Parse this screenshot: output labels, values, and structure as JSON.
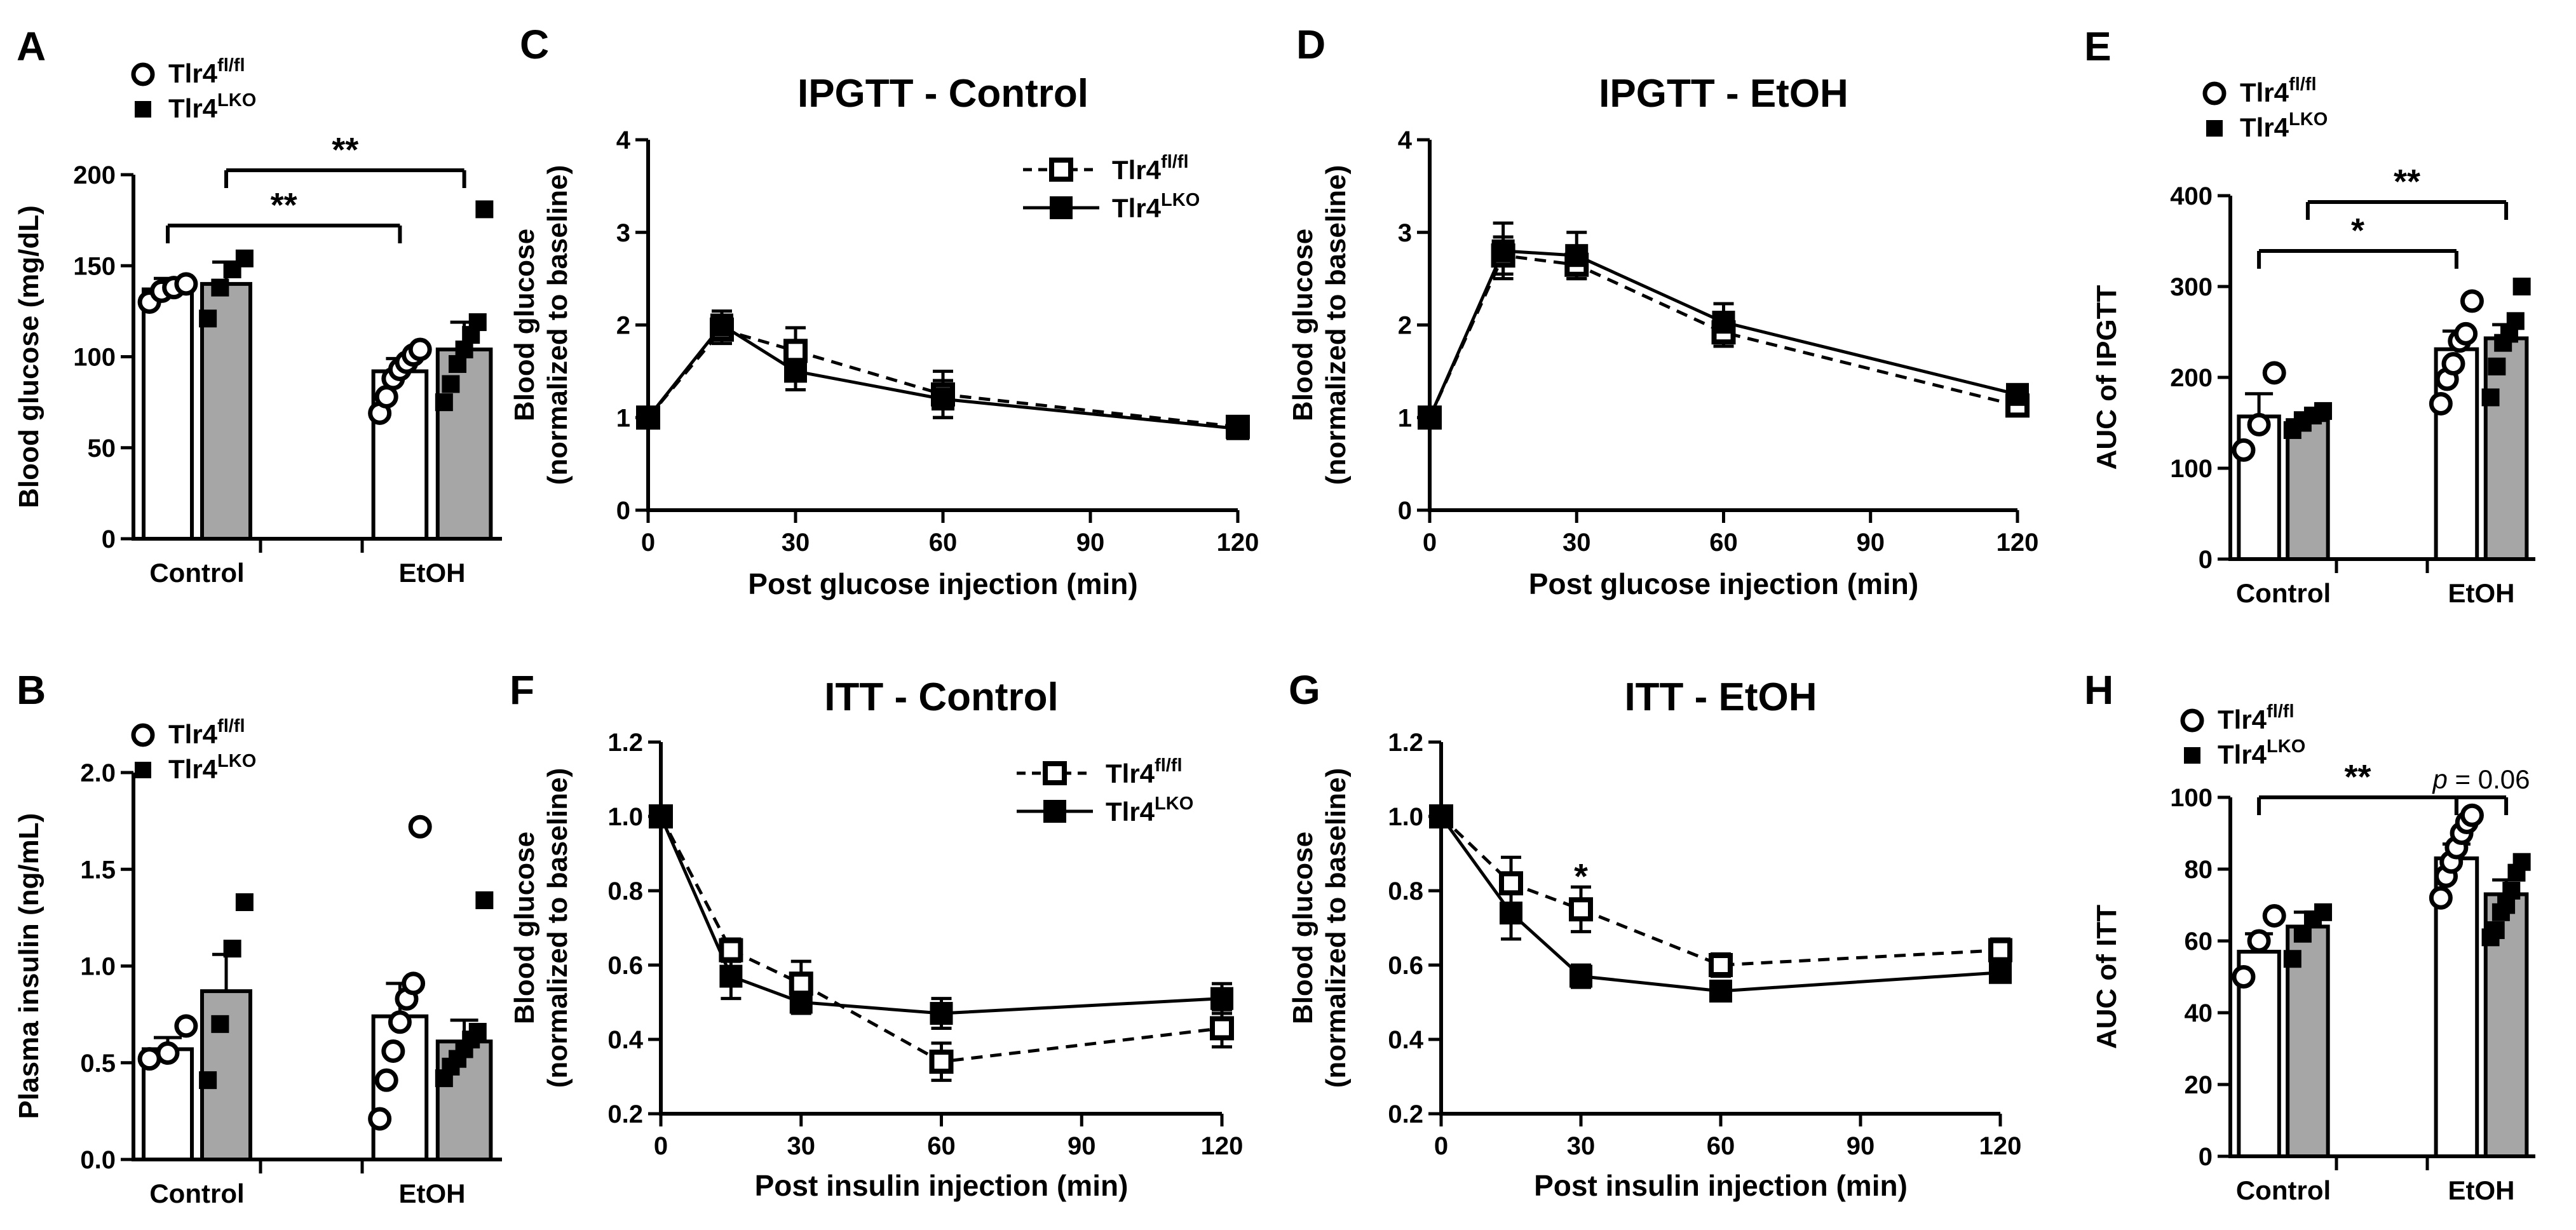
{
  "figure": {
    "legend_fl": "Tlr4",
    "legend_fl_sup": "fl/fl",
    "legend_lko": "Tlr4",
    "legend_lko_sup": "LKO"
  },
  "chart_data": [
    {
      "panel": "A",
      "type": "bar",
      "title": "",
      "xlabel": "",
      "ylabel": "Blood glucose (mg/dL)",
      "ylim": [
        0,
        200
      ],
      "yticks": [
        "0",
        "50",
        "100",
        "150",
        "200"
      ],
      "categories": [
        "Control",
        "EtOH"
      ],
      "series": [
        {
          "name": "Tlr4 fl/fl",
          "values": [
            137,
            92
          ],
          "sem": [
            6,
            7
          ],
          "points": [
            [
              130,
              136,
              138,
              140
            ],
            [
              69,
              78,
              88,
              93,
              97,
              101,
              104
            ]
          ]
        },
        {
          "name": "Tlr4 LKO",
          "values": [
            140,
            104
          ],
          "sem": [
            12,
            15
          ],
          "points": [
            [
              121,
              138,
              148,
              154
            ],
            [
              75,
              85,
              96,
              104,
              112,
              119,
              181
            ]
          ]
        }
      ],
      "significance": [
        {
          "from": "Control:Tlr4 fl/fl",
          "to": "EtOH:Tlr4 fl/fl",
          "label": "**"
        },
        {
          "from": "Control:Tlr4 LKO",
          "to": "EtOH:Tlr4 LKO",
          "label": "**"
        }
      ]
    },
    {
      "panel": "B",
      "type": "bar",
      "title": "",
      "xlabel": "",
      "ylabel": "Plasma insulin (ng/mL)",
      "ylim": [
        0,
        2.0
      ],
      "yticks": [
        "0.0",
        "0.5",
        "1.0",
        "1.5",
        "2.0"
      ],
      "categories": [
        "Control",
        "EtOH"
      ],
      "series": [
        {
          "name": "Tlr4 fl/fl",
          "values": [
            0.57,
            0.74
          ],
          "sem": [
            0.06,
            0.17
          ],
          "points": [
            [
              0.52,
              0.55,
              0.69
            ],
            [
              0.21,
              0.41,
              0.56,
              0.71,
              0.83,
              0.91,
              1.72
            ]
          ]
        },
        {
          "name": "Tlr4 LKO",
          "values": [
            0.87,
            0.61
          ],
          "sem": [
            0.19,
            0.11
          ],
          "points": [
            [
              0.41,
              0.7,
              1.09,
              1.33
            ],
            [
              0.42,
              0.48,
              0.52,
              0.57,
              0.62,
              0.66,
              1.34
            ]
          ]
        }
      ],
      "significance": []
    },
    {
      "panel": "C",
      "type": "line",
      "title": "IPGTT - Control",
      "xlabel": "Post glucose injection (min)",
      "ylabel": "Blood glucose",
      "ylabel2": "(normalized to baseline)",
      "xlim": [
        0,
        120
      ],
      "ylim": [
        0,
        4
      ],
      "xticks": [
        "0",
        "30",
        "60",
        "90",
        "120"
      ],
      "yticks": [
        "0",
        "1",
        "2",
        "3",
        "4"
      ],
      "x": [
        0,
        15,
        30,
        60,
        120
      ],
      "series": [
        {
          "name": "Tlr4 fl/fl",
          "style": "dashed",
          "marker": "open-square",
          "values": [
            1.0,
            1.95,
            1.72,
            1.25,
            0.9
          ],
          "sem": [
            0.04,
            0.15,
            0.25,
            0.25,
            0.07
          ]
        },
        {
          "name": "Tlr4 LKO",
          "style": "solid",
          "marker": "filled-square",
          "values": [
            1.0,
            2.0,
            1.5,
            1.2,
            0.88
          ],
          "sem": [
            0.04,
            0.15,
            0.2,
            0.2,
            0.07
          ]
        }
      ],
      "legend_location": "top-right"
    },
    {
      "panel": "D",
      "type": "line",
      "title": "IPGTT - EtOH",
      "xlabel": "Post glucose injection (min)",
      "ylabel": "Blood glucose",
      "ylabel2": "(normalized to baseline)",
      "xlim": [
        0,
        120
      ],
      "ylim": [
        0,
        4
      ],
      "xticks": [
        "0",
        "30",
        "60",
        "90",
        "120"
      ],
      "yticks": [
        "0",
        "1",
        "2",
        "3",
        "4"
      ],
      "x": [
        0,
        15,
        30,
        60,
        120
      ],
      "series": [
        {
          "name": "Tlr4 fl/fl",
          "style": "dashed",
          "marker": "open-square",
          "values": [
            1.0,
            2.75,
            2.65,
            1.92,
            1.13
          ],
          "sem": [
            0.04,
            0.2,
            0.15,
            0.15,
            0.08
          ]
        },
        {
          "name": "Tlr4 LKO",
          "style": "solid",
          "marker": "filled-square",
          "values": [
            1.0,
            2.8,
            2.75,
            2.03,
            1.25
          ],
          "sem": [
            0.04,
            0.3,
            0.25,
            0.2,
            0.06
          ]
        }
      ]
    },
    {
      "panel": "E",
      "type": "bar",
      "title": "",
      "xlabel": "",
      "ylabel": "AUC of IPGTT",
      "ylim": [
        0,
        400
      ],
      "yticks": [
        "0",
        "100",
        "200",
        "300",
        "400"
      ],
      "categories": [
        "Control",
        "EtOH"
      ],
      "series": [
        {
          "name": "Tlr4 fl/fl",
          "values": [
            157,
            231
          ],
          "sem": [
            25,
            20
          ],
          "points": [
            [
              120,
              148,
              205
            ],
            [
              171,
              198,
              215,
              240,
              248,
              284
            ]
          ]
        },
        {
          "name": "Tlr4 LKO",
          "values": [
            153,
            243
          ],
          "sem": [
            8,
            15
          ],
          "points": [
            [
              142,
              150,
              158,
              163
            ],
            [
              178,
              212,
              238,
              248,
              262,
              300
            ]
          ]
        }
      ],
      "significance": [
        {
          "from": "Control:Tlr4 fl/fl",
          "to": "EtOH:Tlr4 fl/fl",
          "label": "*"
        },
        {
          "from": "Control:Tlr4 LKO",
          "to": "EtOH:Tlr4 LKO",
          "label": "**"
        }
      ]
    },
    {
      "panel": "F",
      "type": "line",
      "title": "ITT - Control",
      "xlabel": "Post insulin injection (min)",
      "ylabel": "Blood glucose",
      "ylabel2": "(normalized to baseline)",
      "xlim": [
        0,
        120
      ],
      "ylim": [
        0.2,
        1.2
      ],
      "xticks": [
        "0",
        "30",
        "60",
        "90",
        "120"
      ],
      "yticks": [
        "0.2",
        "0.4",
        "0.6",
        "0.8",
        "1.0",
        "1.2"
      ],
      "x": [
        0,
        15,
        30,
        60,
        120
      ],
      "series": [
        {
          "name": "Tlr4 fl/fl",
          "style": "dashed",
          "marker": "open-square",
          "values": [
            1.0,
            0.64,
            0.55,
            0.34,
            0.43
          ],
          "sem": [
            0.01,
            0.03,
            0.06,
            0.05,
            0.05
          ]
        },
        {
          "name": "Tlr4 LKO",
          "style": "solid",
          "marker": "filled-square",
          "values": [
            1.0,
            0.57,
            0.5,
            0.47,
            0.51
          ],
          "sem": [
            0.01,
            0.06,
            0.03,
            0.04,
            0.04
          ]
        }
      ],
      "legend_location": "top-right"
    },
    {
      "panel": "G",
      "type": "line",
      "title": "ITT - EtOH",
      "xlabel": "Post insulin injection (min)",
      "ylabel": "Blood glucose",
      "ylabel2": "(normalized to baseline)",
      "xlim": [
        0,
        120
      ],
      "ylim": [
        0.2,
        1.2
      ],
      "xticks": [
        "0",
        "30",
        "60",
        "90",
        "120"
      ],
      "yticks": [
        "0.2",
        "0.4",
        "0.6",
        "0.8",
        "1.0",
        "1.2"
      ],
      "x": [
        0,
        15,
        30,
        60,
        120
      ],
      "series": [
        {
          "name": "Tlr4 fl/fl",
          "style": "dashed",
          "marker": "open-square",
          "values": [
            1.0,
            0.82,
            0.75,
            0.6,
            0.64
          ],
          "sem": [
            0.01,
            0.07,
            0.06,
            0.03,
            0.03
          ]
        },
        {
          "name": "Tlr4 LKO",
          "style": "solid",
          "marker": "filled-square",
          "values": [
            1.0,
            0.74,
            0.57,
            0.53,
            0.58
          ],
          "sem": [
            0.01,
            0.07,
            0.03,
            0.02,
            0.02
          ]
        }
      ],
      "annotations": [
        {
          "x": 30,
          "y": 0.84,
          "text": "*"
        }
      ]
    },
    {
      "panel": "H",
      "type": "bar",
      "title": "",
      "xlabel": "",
      "ylabel": "AUC of ITT",
      "ylim": [
        0,
        100
      ],
      "yticks": [
        "0",
        "20",
        "40",
        "60",
        "80",
        "100"
      ],
      "categories": [
        "Control",
        "EtOH"
      ],
      "series": [
        {
          "name": "Tlr4 fl/fl",
          "values": [
            57,
            83
          ],
          "sem": [
            5,
            4
          ],
          "points": [
            [
              50,
              60,
              67
            ],
            [
              72,
              78,
              82,
              86,
              90,
              93,
              95
            ]
          ]
        },
        {
          "name": "Tlr4 LKO",
          "values": [
            64,
            73
          ],
          "sem": [
            4,
            4
          ],
          "points": [
            [
              55,
              62,
              66,
              68
            ],
            [
              61,
              63,
              68,
              70,
              74,
              79,
              82
            ]
          ]
        }
      ],
      "significance": [
        {
          "from": "Control:Tlr4 fl/fl",
          "to": "EtOH:Tlr4 fl/fl",
          "label": "**"
        },
        {
          "from": "EtOH:Tlr4 fl/fl",
          "to": "EtOH:Tlr4 LKO",
          "label": "p = 0.06"
        }
      ]
    }
  ]
}
